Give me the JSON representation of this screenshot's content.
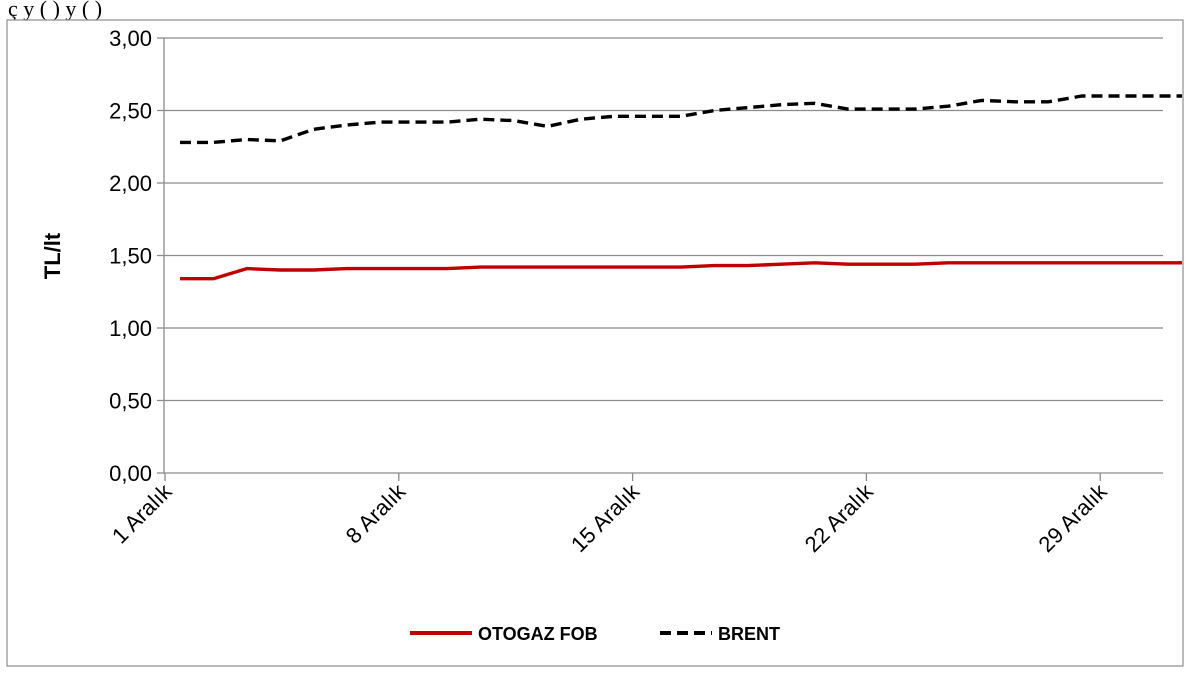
{
  "title_fragment": "ç                        y                     (   )     y  (      )",
  "chart_data": {
    "type": "line",
    "title": "",
    "xlabel": "",
    "ylabel": "TL/lt",
    "ylim": [
      0,
      3
    ],
    "y_ticks": [
      "0,00",
      "0,50",
      "1,00",
      "1,50",
      "2,00",
      "2,50",
      "3,00"
    ],
    "x_tick_labels": [
      "1 Aralık",
      "8 Aralık",
      "15 Aralık",
      "22 Aralık",
      "29 Aralık"
    ],
    "x_tick_days": [
      1,
      8,
      15,
      22,
      29
    ],
    "x_range_days": [
      1,
      31
    ],
    "grid": true,
    "legend_position": "bottom",
    "series": [
      {
        "name": "OTOGAZ FOB",
        "color": "#c00000",
        "style": "solid",
        "x": [
          1,
          2,
          3,
          4,
          5,
          6,
          7,
          8,
          9,
          10,
          11,
          12,
          13,
          14,
          15,
          16,
          17,
          18,
          19,
          20,
          21,
          22,
          23,
          24,
          25,
          26,
          27,
          28,
          29,
          30,
          31
        ],
        "values": [
          1.34,
          1.34,
          1.41,
          1.4,
          1.4,
          1.41,
          1.41,
          1.41,
          1.41,
          1.42,
          1.42,
          1.42,
          1.42,
          1.42,
          1.42,
          1.42,
          1.43,
          1.43,
          1.44,
          1.45,
          1.44,
          1.44,
          1.44,
          1.45,
          1.45,
          1.45,
          1.45,
          1.45,
          1.45,
          1.45,
          1.45
        ]
      },
      {
        "name": "BRENT",
        "color": "#000000",
        "style": "dashed",
        "x": [
          1,
          2,
          3,
          4,
          5,
          6,
          7,
          8,
          9,
          10,
          11,
          12,
          13,
          14,
          15,
          16,
          17,
          18,
          19,
          20,
          21,
          22,
          23,
          24,
          25,
          26,
          27,
          28,
          29,
          30,
          31
        ],
        "values": [
          2.28,
          2.28,
          2.3,
          2.29,
          2.37,
          2.4,
          2.42,
          2.42,
          2.42,
          2.44,
          2.43,
          2.39,
          2.44,
          2.46,
          2.46,
          2.46,
          2.5,
          2.52,
          2.54,
          2.55,
          2.51,
          2.51,
          2.51,
          2.53,
          2.57,
          2.56,
          2.56,
          2.6,
          2.6,
          2.6,
          2.6
        ]
      }
    ]
  }
}
